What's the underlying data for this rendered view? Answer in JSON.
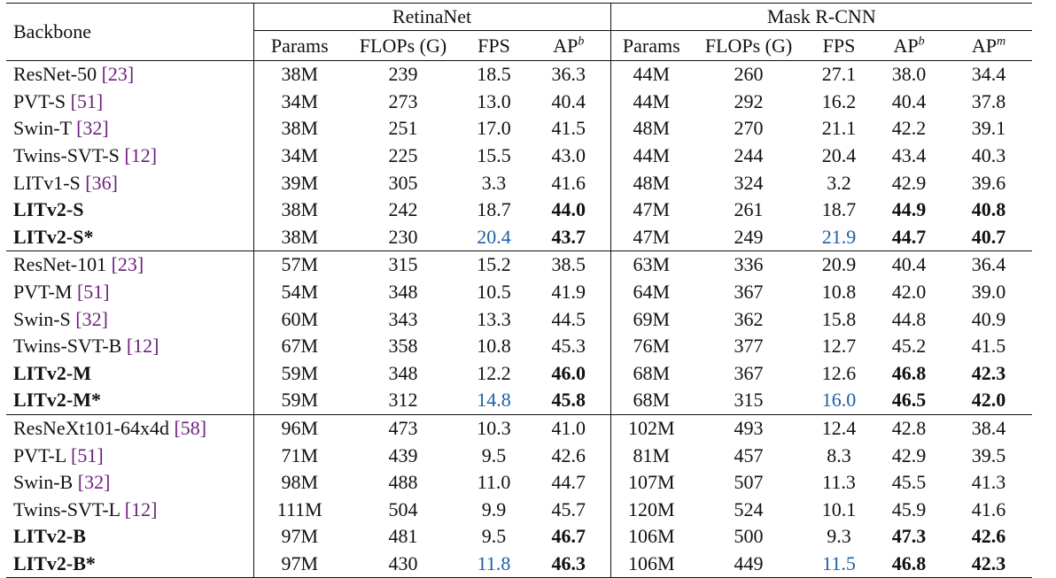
{
  "header": {
    "backbone": "Backbone",
    "group1": "RetinaNet",
    "group2": "Mask R-CNN",
    "cols_retina": [
      "Params",
      "FLOPs (G)",
      "FPS",
      "AP"
    ],
    "cols_mask": [
      "Params",
      "FLOPs (G)",
      "FPS",
      "AP",
      "AP"
    ],
    "ap_b_sup": "b",
    "ap_m_sup": "m"
  },
  "rows": [
    {
      "name": "ResNet-50",
      "cite": "[23]",
      "r": [
        "38M",
        "239",
        "18.5",
        "36.3"
      ],
      "m": [
        "44M",
        "260",
        "27.1",
        "38.0",
        "34.4"
      ]
    },
    {
      "name": "PVT-S",
      "cite": "[51]",
      "r": [
        "34M",
        "273",
        "13.0",
        "40.4"
      ],
      "m": [
        "44M",
        "292",
        "16.2",
        "40.4",
        "37.8"
      ]
    },
    {
      "name": "Swin-T",
      "cite": "[32]",
      "r": [
        "38M",
        "251",
        "17.0",
        "41.5"
      ],
      "m": [
        "48M",
        "270",
        "21.1",
        "42.2",
        "39.1"
      ]
    },
    {
      "name": "Twins-SVT-S",
      "cite": "[12]",
      "r": [
        "34M",
        "225",
        "15.5",
        "43.0"
      ],
      "m": [
        "44M",
        "244",
        "20.4",
        "43.4",
        "40.3"
      ]
    },
    {
      "name": "LITv1-S",
      "cite": "[36]",
      "r": [
        "39M",
        "305",
        "3.3",
        "41.6"
      ],
      "m": [
        "48M",
        "324",
        "3.2",
        "42.9",
        "39.6"
      ]
    },
    {
      "name": "LITv2-S",
      "cite": "",
      "r": [
        "38M",
        "242",
        "18.7",
        "44.0"
      ],
      "m": [
        "47M",
        "261",
        "18.7",
        "44.9",
        "40.8"
      ]
    },
    {
      "name": "LITv2-S*",
      "cite": "",
      "r": [
        "38M",
        "230",
        "20.4",
        "43.7"
      ],
      "m": [
        "47M",
        "249",
        "21.9",
        "44.7",
        "40.7"
      ]
    },
    {
      "name": "ResNet-101",
      "cite": "[23]",
      "r": [
        "57M",
        "315",
        "15.2",
        "38.5"
      ],
      "m": [
        "63M",
        "336",
        "20.9",
        "40.4",
        "36.4"
      ]
    },
    {
      "name": "PVT-M",
      "cite": "[51]",
      "r": [
        "54M",
        "348",
        "10.5",
        "41.9"
      ],
      "m": [
        "64M",
        "367",
        "10.8",
        "42.0",
        "39.0"
      ]
    },
    {
      "name": "Swin-S",
      "cite": "[32]",
      "r": [
        "60M",
        "343",
        "13.3",
        "44.5"
      ],
      "m": [
        "69M",
        "362",
        "15.8",
        "44.8",
        "40.9"
      ]
    },
    {
      "name": "Twins-SVT-B",
      "cite": "[12]",
      "r": [
        "67M",
        "358",
        "10.8",
        "45.3"
      ],
      "m": [
        "76M",
        "377",
        "12.7",
        "45.2",
        "41.5"
      ]
    },
    {
      "name": "LITv2-M",
      "cite": "",
      "r": [
        "59M",
        "348",
        "12.2",
        "46.0"
      ],
      "m": [
        "68M",
        "367",
        "12.6",
        "46.8",
        "42.3"
      ]
    },
    {
      "name": "LITv2-M*",
      "cite": "",
      "r": [
        "59M",
        "312",
        "14.8",
        "45.8"
      ],
      "m": [
        "68M",
        "315",
        "16.0",
        "46.5",
        "42.0"
      ]
    },
    {
      "name": "ResNeXt101-64x4d",
      "cite": "[58]",
      "r": [
        "96M",
        "473",
        "10.3",
        "41.0"
      ],
      "m": [
        "102M",
        "493",
        "12.4",
        "42.8",
        "38.4"
      ]
    },
    {
      "name": "PVT-L",
      "cite": "[51]",
      "r": [
        "71M",
        "439",
        "9.5",
        "42.6"
      ],
      "m": [
        "81M",
        "457",
        "8.3",
        "42.9",
        "39.5"
      ]
    },
    {
      "name": "Swin-B",
      "cite": "[32]",
      "r": [
        "98M",
        "488",
        "11.0",
        "44.7"
      ],
      "m": [
        "107M",
        "507",
        "11.3",
        "45.5",
        "41.3"
      ]
    },
    {
      "name": "Twins-SVT-L",
      "cite": "[12]",
      "r": [
        "111M",
        "504",
        "9.9",
        "45.7"
      ],
      "m": [
        "120M",
        "524",
        "10.1",
        "45.9",
        "41.6"
      ]
    },
    {
      "name": "LITv2-B",
      "cite": "",
      "r": [
        "97M",
        "481",
        "9.5",
        "46.7"
      ],
      "m": [
        "106M",
        "500",
        "9.3",
        "47.3",
        "42.6"
      ]
    },
    {
      "name": "LITv2-B*",
      "cite": "",
      "r": [
        "97M",
        "430",
        "11.8",
        "46.3"
      ],
      "m": [
        "106M",
        "449",
        "11.5",
        "46.8",
        "42.3"
      ]
    }
  ],
  "colors": {
    "citation": "#6b1f7a",
    "highlight_fps": "#1f5fa8",
    "text": "#111111"
  }
}
